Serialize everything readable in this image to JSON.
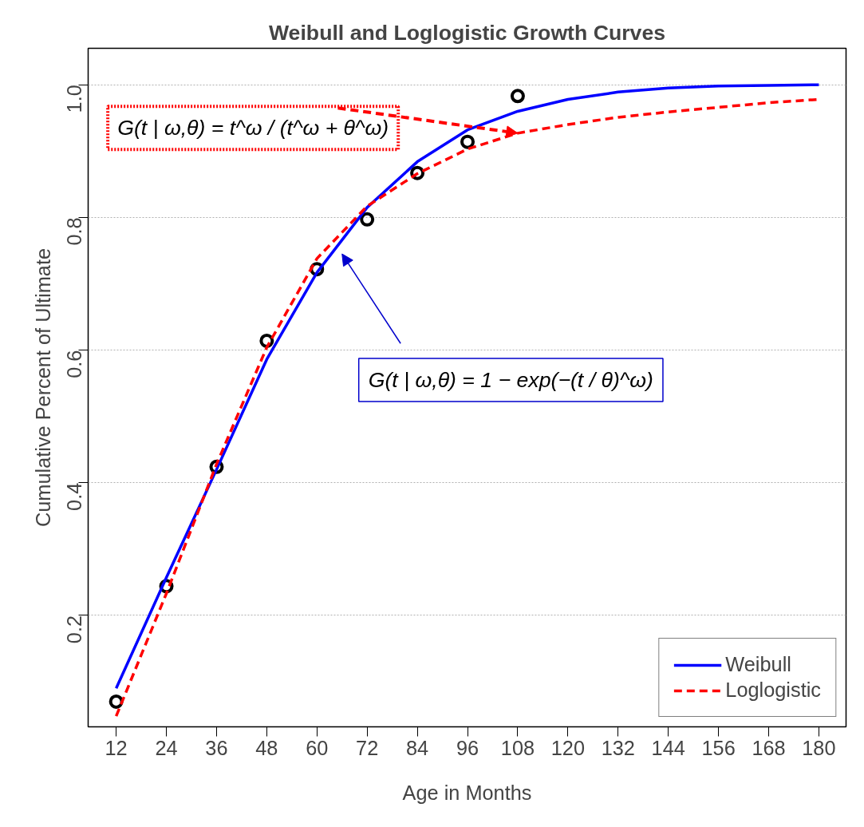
{
  "chart_data": {
    "type": "line",
    "title": "Weibull and Loglogistic Growth Curves",
    "xlabel": "Age in Months",
    "ylabel": "Cumulative Percent of Ultimate",
    "x": [
      12,
      24,
      36,
      48,
      60,
      72,
      84,
      96,
      108,
      120,
      132,
      144,
      156,
      168,
      180
    ],
    "series": [
      {
        "type": "scatter",
        "color": "#000000",
        "marker": "circle",
        "x": [
          12,
          24,
          36,
          48,
          60,
          72,
          84,
          96,
          108
        ],
        "values": [
          0.07,
          0.244,
          0.424,
          0.614,
          0.722,
          0.797,
          0.867,
          0.914,
          0.983
        ]
      },
      {
        "name": "Weibull",
        "color": "#0000ff",
        "line_style": "solid",
        "values": [
          0.09,
          0.257,
          0.42,
          0.586,
          0.717,
          0.815,
          0.884,
          0.932,
          0.96,
          0.978,
          0.989,
          0.995,
          0.998,
          0.999,
          1.0
        ]
      },
      {
        "name": "Loglogistic",
        "color": "#ff0000",
        "line_style": "dashed",
        "values": [
          0.048,
          0.233,
          0.428,
          0.604,
          0.738,
          0.817,
          0.866,
          0.903,
          0.927,
          0.94,
          0.951,
          0.959,
          0.966,
          0.973,
          0.978
        ]
      }
    ],
    "annotations": [
      {
        "text": "G(t | ω,θ) = t^ω / (t^ω + θ^ω)",
        "x": 108,
        "y": 0.927
      },
      "G(t | ω,θ) = 1 − exp(−(t / θ)^ω)"
    ],
    "xlim": [
      5.3,
      186.5
    ],
    "ylim": [
      0.032,
      1.055
    ],
    "xticks": [
      12,
      24,
      36,
      48,
      60,
      72,
      84,
      96,
      108,
      120,
      132,
      144,
      156,
      168,
      180
    ],
    "yticks": [
      0.2,
      0.4,
      0.6,
      0.8,
      {
        "value": 1,
        "label": "1.0"
      }
    ],
    "grid": "y",
    "legend": "bottom right"
  }
}
